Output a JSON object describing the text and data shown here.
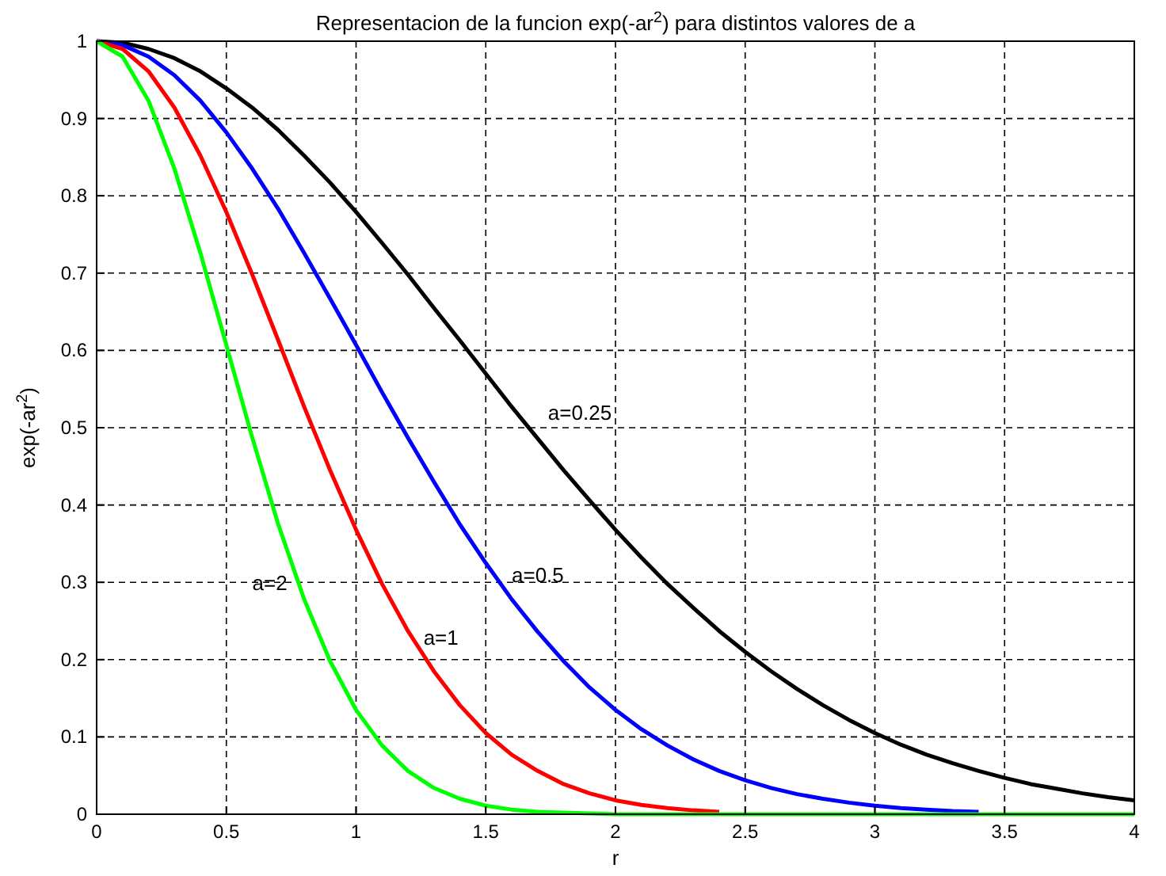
{
  "chart_data": {
    "type": "line",
    "title": "Representacion de la funcion exp(-ar$^{2}$) para distintos valores de a",
    "xlabel": "r",
    "ylabel": "exp(-ar$^{2}$)",
    "series": [
      {
        "name": "a=0.25",
        "color": "#000000",
        "x": [
          0,
          0.1,
          0.2,
          0.3,
          0.4,
          0.5,
          0.6,
          0.7,
          0.8,
          0.9,
          1,
          1.1,
          1.2,
          1.3,
          1.4,
          1.5,
          1.6,
          1.7,
          1.8,
          1.9,
          2,
          2.1,
          2.2,
          2.3,
          2.4,
          2.5,
          2.6,
          2.7,
          2.8,
          2.9,
          3,
          3.1,
          3.2,
          3.3,
          3.4,
          3.5,
          3.6,
          3.7,
          3.8,
          3.9,
          4
        ],
        "values": [
          1,
          0.998,
          0.99,
          0.978,
          0.961,
          0.939,
          0.914,
          0.885,
          0.852,
          0.817,
          0.779,
          0.739,
          0.698,
          0.655,
          0.613,
          0.57,
          0.527,
          0.486,
          0.445,
          0.406,
          0.368,
          0.332,
          0.298,
          0.267,
          0.237,
          0.21,
          0.185,
          0.162,
          0.141,
          0.122,
          0.105,
          0.09,
          0.077,
          0.066,
          0.056,
          0.047,
          0.039,
          0.033,
          0.027,
          0.022,
          0.018
        ]
      },
      {
        "name": "a=0.5",
        "color": "#0000ff",
        "x": [
          0,
          0.1,
          0.2,
          0.3,
          0.4,
          0.5,
          0.6,
          0.7,
          0.8,
          0.9,
          1,
          1.1,
          1.2,
          1.3,
          1.4,
          1.5,
          1.6,
          1.7,
          1.8,
          1.9,
          2,
          2.1,
          2.2,
          2.3,
          2.4,
          2.5,
          2.6,
          2.7,
          2.8,
          2.9,
          3,
          3.1,
          3.2,
          3.3,
          3.4
        ],
        "values": [
          1,
          0.995,
          0.98,
          0.956,
          0.923,
          0.882,
          0.835,
          0.783,
          0.726,
          0.667,
          0.607,
          0.546,
          0.487,
          0.43,
          0.375,
          0.325,
          0.278,
          0.236,
          0.198,
          0.164,
          0.135,
          0.11,
          0.089,
          0.071,
          0.056,
          0.044,
          0.034,
          0.026,
          0.02,
          0.015,
          0.011,
          0.008,
          0.006,
          0.004,
          0.003
        ]
      },
      {
        "name": "a=1",
        "color": "#ff0000",
        "x": [
          0,
          0.1,
          0.2,
          0.3,
          0.4,
          0.5,
          0.6,
          0.7,
          0.8,
          0.9,
          1,
          1.1,
          1.2,
          1.3,
          1.4,
          1.5,
          1.6,
          1.7,
          1.8,
          1.9,
          2,
          2.1,
          2.2,
          2.3,
          2.4
        ],
        "values": [
          1,
          0.99,
          0.961,
          0.914,
          0.852,
          0.779,
          0.698,
          0.613,
          0.527,
          0.445,
          0.368,
          0.298,
          0.237,
          0.185,
          0.141,
          0.105,
          0.077,
          0.056,
          0.039,
          0.027,
          0.018,
          0.012,
          0.008,
          0.005,
          0.003
        ]
      },
      {
        "name": "a=2",
        "color": "#00ff00",
        "x": [
          0,
          0.1,
          0.2,
          0.3,
          0.4,
          0.5,
          0.6,
          0.7,
          0.8,
          0.9,
          1,
          1.1,
          1.2,
          1.3,
          1.4,
          1.5,
          1.6,
          1.7,
          1.8,
          1.9,
          2,
          2.1,
          2.2,
          2.3,
          2.4,
          2.5,
          2.6,
          2.7,
          2.8,
          2.9,
          3,
          3.1,
          3.2,
          3.3,
          3.4,
          3.5,
          3.6,
          3.7,
          3.8,
          3.9,
          4
        ],
        "values": [
          1,
          0.98,
          0.923,
          0.835,
          0.726,
          0.607,
          0.487,
          0.375,
          0.278,
          0.198,
          0.135,
          0.089,
          0.056,
          0.034,
          0.02,
          0.011,
          0.006,
          0.003,
          0.002,
          0.001,
          0,
          0,
          0,
          0,
          0,
          0,
          0,
          0,
          0,
          0,
          0,
          0,
          0,
          0,
          0,
          0,
          0,
          0,
          0,
          0,
          0
        ]
      }
    ],
    "xlim": [
      0,
      4
    ],
    "ylim": [
      0,
      1
    ],
    "xticks": [
      0,
      0.5,
      1,
      1.5,
      2,
      2.5,
      3,
      3.5,
      4
    ],
    "yticks": [
      0,
      0.1,
      0.2,
      0.3,
      0.4,
      0.5,
      0.6,
      0.7,
      0.8,
      0.9,
      1
    ],
    "grid": true,
    "line_style": "solid"
  }
}
